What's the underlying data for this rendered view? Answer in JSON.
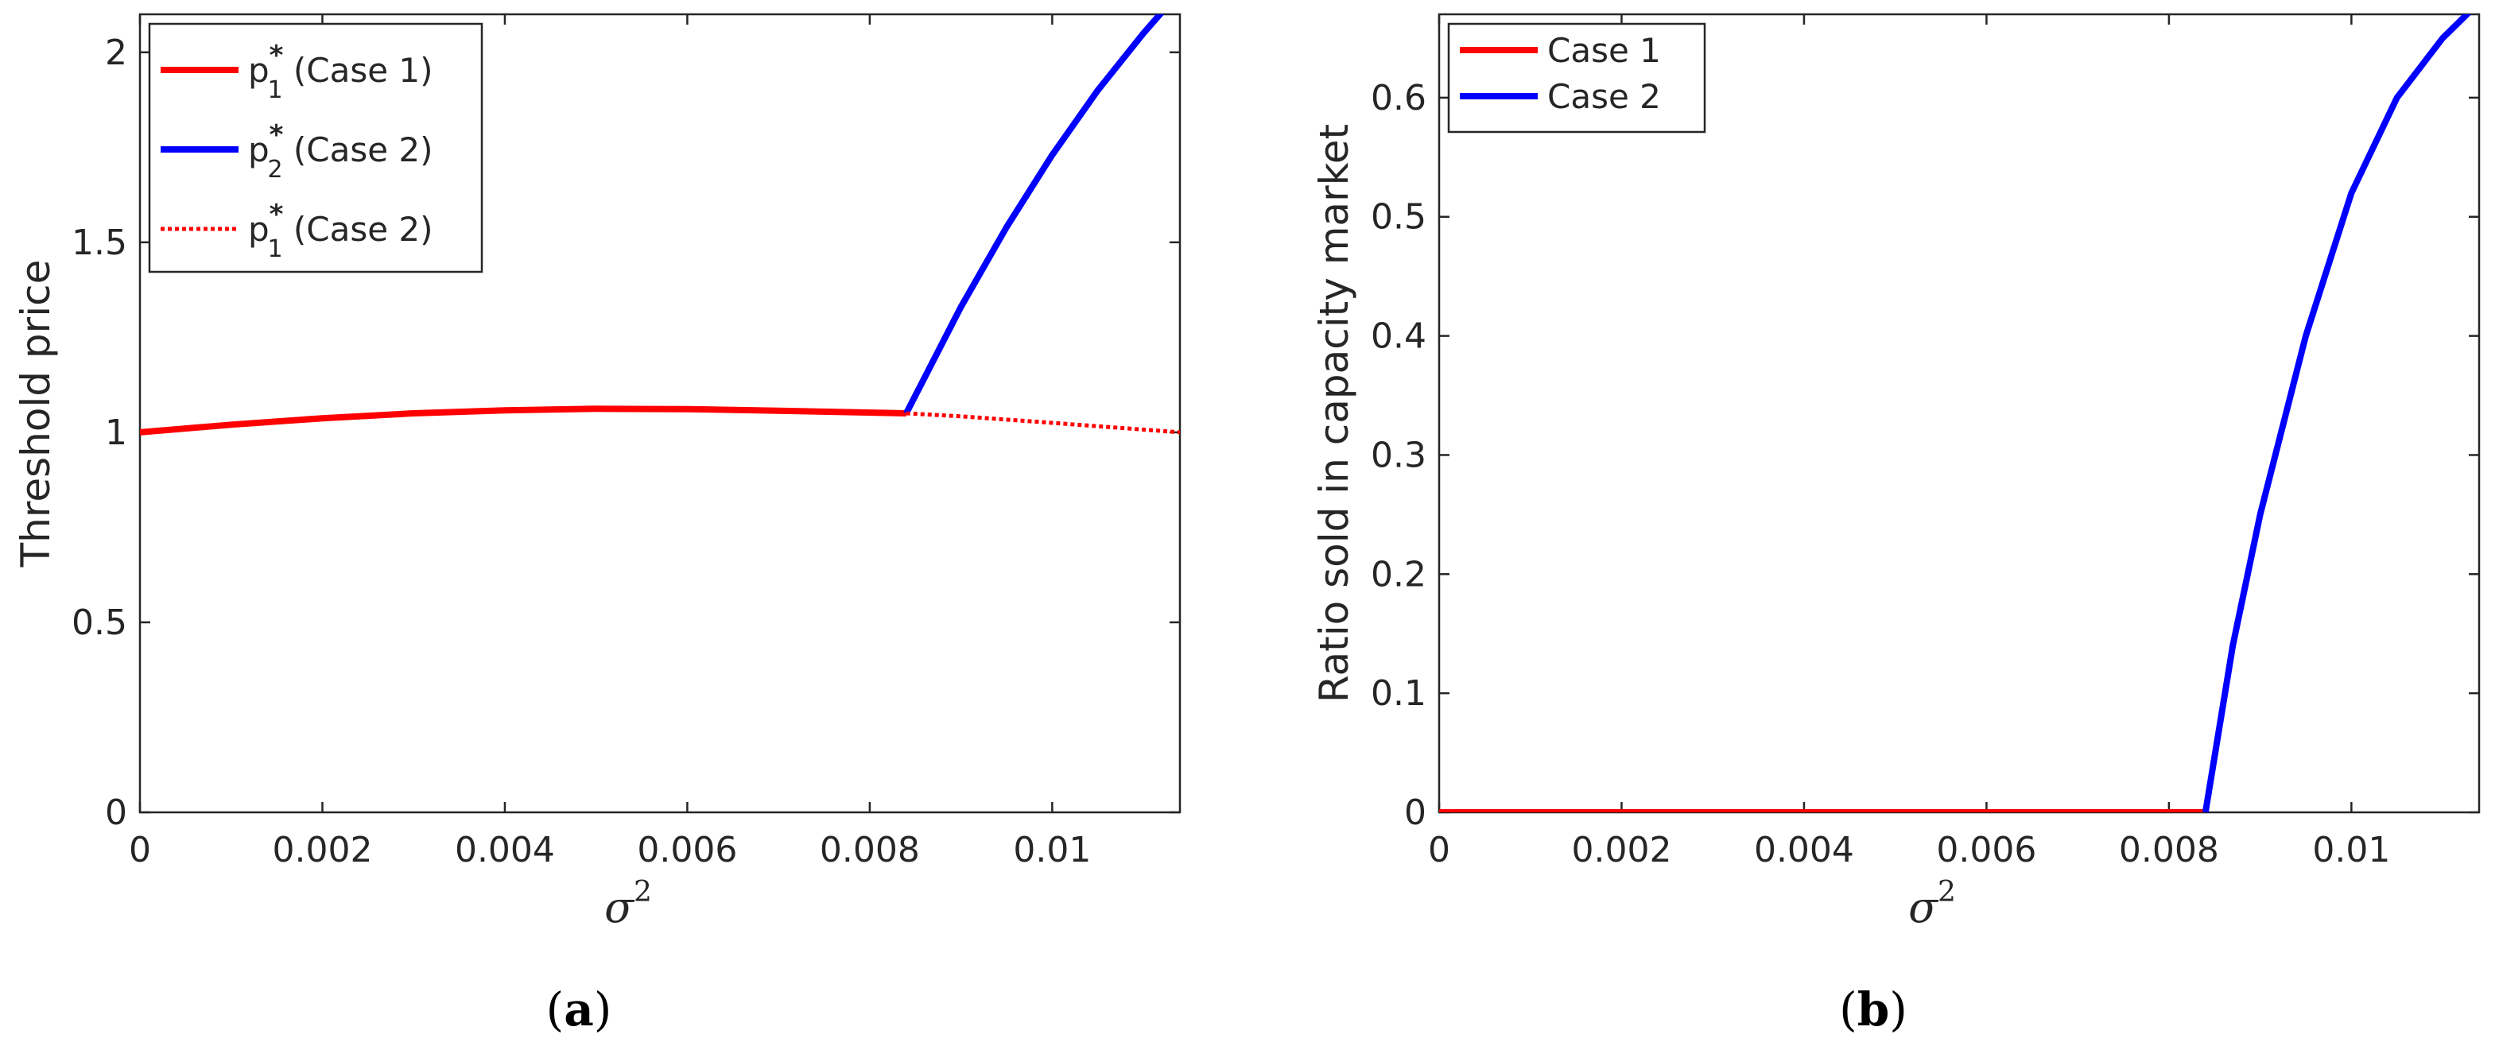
{
  "chart_data": [
    {
      "type": "line",
      "caption": "(a)",
      "xlabel": "σ",
      "xlabel_superscript": "2",
      "ylabel": "Threshold price",
      "xlim": [
        0,
        0.0114
      ],
      "ylim": [
        0,
        2.1
      ],
      "grid": false,
      "legend_position": "top-left",
      "x_ticks": [
        0,
        0.002,
        0.004,
        0.006,
        0.008,
        0.01
      ],
      "x_tick_labels": [
        "0",
        "0.002",
        "0.004",
        "0.006",
        "0.008",
        "0.01"
      ],
      "y_ticks": [
        0,
        0.5,
        1,
        1.5,
        2
      ],
      "y_tick_labels": [
        "0",
        "0.5",
        "1",
        "1.5",
        "2"
      ],
      "series": [
        {
          "name": "p1* (Case 1)",
          "legend_base": "p",
          "legend_sub": "1",
          "legend_sup": "*",
          "legend_suffix": " (Case 1)",
          "color": "#ff0000",
          "style": "solid",
          "points": [
            [
              0,
              1.0
            ],
            [
              0.001,
              1.02
            ],
            [
              0.002,
              1.037
            ],
            [
              0.003,
              1.05
            ],
            [
              0.004,
              1.058
            ],
            [
              0.005,
              1.062
            ],
            [
              0.006,
              1.061
            ],
            [
              0.007,
              1.057
            ],
            [
              0.0084,
              1.05
            ]
          ]
        },
        {
          "name": "p2* (Case 2)",
          "legend_base": "p",
          "legend_sub": "2",
          "legend_sup": "*",
          "legend_suffix": " (Case 2)",
          "color": "#0000ff",
          "style": "solid",
          "points": [
            [
              0.0084,
              1.05
            ],
            [
              0.009,
              1.33
            ],
            [
              0.0095,
              1.54
            ],
            [
              0.01,
              1.73
            ],
            [
              0.0105,
              1.9
            ],
            [
              0.011,
              2.05
            ],
            [
              0.0114,
              2.16
            ]
          ]
        },
        {
          "name": "p1* (Case 2)",
          "legend_base": "p",
          "legend_sub": "1",
          "legend_sup": "*",
          "legend_suffix": " (Case 2)",
          "color": "#ff0000",
          "style": "dotted",
          "points": [
            [
              0.0084,
              1.05
            ],
            [
              0.009,
              1.042
            ],
            [
              0.01,
              1.025
            ],
            [
              0.0114,
              1.0
            ]
          ]
        }
      ]
    },
    {
      "type": "line",
      "caption": "(b)",
      "xlabel": "σ",
      "xlabel_superscript": "2",
      "ylabel": "Ratio sold in capacity market",
      "xlim": [
        0,
        0.0114
      ],
      "ylim": [
        0,
        0.67
      ],
      "grid": false,
      "legend_position": "top-left",
      "x_ticks": [
        0,
        0.002,
        0.004,
        0.006,
        0.008,
        0.01
      ],
      "x_tick_labels": [
        "0",
        "0.002",
        "0.004",
        "0.006",
        "0.008",
        "0.01"
      ],
      "y_ticks": [
        0,
        0.1,
        0.2,
        0.3,
        0.4,
        0.5,
        0.6
      ],
      "y_tick_labels": [
        "0",
        "0.1",
        "0.2",
        "0.3",
        "0.4",
        "0.5",
        "0.6"
      ],
      "series": [
        {
          "name": "Case 1",
          "color": "#ff0000",
          "style": "solid",
          "points": [
            [
              0,
              0
            ],
            [
              0.0084,
              0
            ]
          ]
        },
        {
          "name": "Case 2",
          "color": "#0000ff",
          "style": "solid",
          "points": [
            [
              0.0084,
              0
            ],
            [
              0.0087,
              0.14
            ],
            [
              0.009,
              0.25
            ],
            [
              0.0095,
              0.4
            ],
            [
              0.01,
              0.52
            ],
            [
              0.0105,
              0.6
            ],
            [
              0.011,
              0.65
            ],
            [
              0.0114,
              0.68
            ]
          ]
        }
      ]
    }
  ]
}
